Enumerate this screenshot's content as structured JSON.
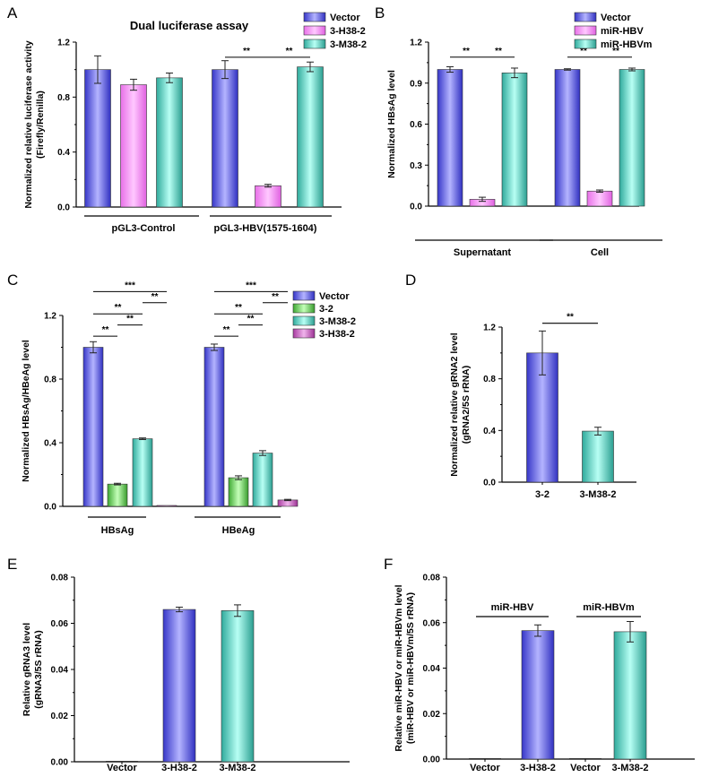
{
  "colors": {
    "blue": "#4b4bd8",
    "pink": "#f07ef0",
    "teal": "#48c6b8",
    "green": "#5cc24c",
    "purple": "#c046b8"
  },
  "chart_data": [
    {
      "panel": "A",
      "type": "bar",
      "title": "Dual luciferase assay",
      "ylabel": [
        "Normalized relative luciferase activity",
        "(Firefly/Renilla)"
      ],
      "ylim": [
        0,
        1.2
      ],
      "yticks": [
        "0.0",
        "0.4",
        "0.8",
        "1.2"
      ],
      "categories": [
        "pGL3-Control",
        "pGL3-HBV(1575-1604)"
      ],
      "series": [
        {
          "name": "Vector",
          "color": "blue",
          "values": [
            1.0,
            1.0
          ],
          "errors": [
            0.1,
            0.065
          ]
        },
        {
          "name": "3-H38-2",
          "color": "pink",
          "values": [
            0.89,
            0.155
          ],
          "errors": [
            0.04,
            0.01
          ]
        },
        {
          "name": "3-M38-2",
          "color": "teal",
          "values": [
            0.94,
            1.02
          ],
          "errors": [
            0.035,
            0.035
          ]
        }
      ],
      "significance": [
        {
          "label": "**",
          "group": 1,
          "from": 0,
          "to": 1,
          "y": 1.09
        },
        {
          "label": "**",
          "group": 1,
          "from": 1,
          "to": 2,
          "y": 1.09
        }
      ],
      "legend": "top-right"
    },
    {
      "panel": "B",
      "type": "bar",
      "title": "",
      "ylabel": [
        "Normalized HBsAg level"
      ],
      "ylim": [
        0,
        1.2
      ],
      "yticks": [
        "0.0",
        "0.3",
        "0.6",
        "0.9",
        "1.2"
      ],
      "categories": [
        "Supernatant",
        "Cell"
      ],
      "series": [
        {
          "name": "Vector",
          "color": "blue",
          "values": [
            1.0,
            1.0
          ],
          "errors": [
            0.02,
            0.005
          ]
        },
        {
          "name": "miR-HBV",
          "color": "pink",
          "values": [
            0.05,
            0.11
          ],
          "errors": [
            0.015,
            0.008
          ]
        },
        {
          "name": "miR-HBVm",
          "color": "teal",
          "values": [
            0.975,
            1.0
          ],
          "errors": [
            0.035,
            0.01
          ]
        }
      ],
      "significance": [
        {
          "label": "**",
          "group": 0,
          "from": 0,
          "to": 1,
          "y": 1.09
        },
        {
          "label": "**",
          "group": 0,
          "from": 1,
          "to": 2,
          "y": 1.09
        },
        {
          "label": "**",
          "group": 1,
          "from": 0,
          "to": 1,
          "y": 1.09
        },
        {
          "label": "**",
          "group": 1,
          "from": 1,
          "to": 2,
          "y": 1.09
        }
      ],
      "legend": "top-right"
    },
    {
      "panel": "C",
      "type": "bar",
      "title": "",
      "ylabel": [
        "Normalized HBsAg/HBeAg level"
      ],
      "ylim": [
        0,
        1.2
      ],
      "yticks": [
        "0.0",
        "0.4",
        "0.8",
        "1.2"
      ],
      "categories": [
        "HBsAg",
        "HBeAg"
      ],
      "series": [
        {
          "name": "Vector",
          "color": "blue",
          "values": [
            1.0,
            1.0
          ],
          "errors": [
            0.035,
            0.02
          ]
        },
        {
          "name": "3-2",
          "color": "green",
          "values": [
            0.14,
            0.18
          ],
          "errors": [
            0.005,
            0.012
          ]
        },
        {
          "name": "3-M38-2",
          "color": "teal",
          "values": [
            0.425,
            0.335
          ],
          "errors": [
            0.005,
            0.015
          ]
        },
        {
          "name": "3-H38-2",
          "color": "purple",
          "values": [
            0.005,
            0.04
          ],
          "errors": [
            0.0,
            0.004
          ]
        }
      ],
      "significance": [
        {
          "label": "**",
          "group": 0,
          "from": 0,
          "to": 1,
          "y": 1.07
        },
        {
          "label": "**",
          "group": 0,
          "from": 1,
          "to": 2,
          "y": 1.14
        },
        {
          "label": "**",
          "group": 0,
          "from": 0,
          "to": 2,
          "y": 1.21
        },
        {
          "label": "**",
          "group": 0,
          "from": 2,
          "to": 3,
          "y": 1.28
        },
        {
          "label": "***",
          "group": 0,
          "from": 0,
          "to": 3,
          "y": 1.35
        },
        {
          "label": "**",
          "group": 1,
          "from": 0,
          "to": 1,
          "y": 1.07
        },
        {
          "label": "**",
          "group": 1,
          "from": 1,
          "to": 2,
          "y": 1.14
        },
        {
          "label": "**",
          "group": 1,
          "from": 0,
          "to": 2,
          "y": 1.21
        },
        {
          "label": "**",
          "group": 1,
          "from": 2,
          "to": 3,
          "y": 1.28
        },
        {
          "label": "***",
          "group": 1,
          "from": 0,
          "to": 3,
          "y": 1.35
        }
      ],
      "legend": "top-right"
    },
    {
      "panel": "D",
      "type": "bar",
      "title": "",
      "ylabel": [
        "Normalized relative gRNA2 level",
        "(gRNA2/5S rRNA)"
      ],
      "ylim": [
        0,
        1.2
      ],
      "yticks": [
        "0.0",
        "0.4",
        "0.8",
        "1.2"
      ],
      "categories": [
        "3-2",
        "3-M38-2"
      ],
      "values": [
        1.0,
        0.395
      ],
      "errors": [
        0.17,
        0.03
      ],
      "colors": [
        "blue",
        "teal"
      ],
      "significance": [
        {
          "label": "**",
          "from": 0,
          "to": 1,
          "y": 1.23
        }
      ]
    },
    {
      "panel": "E",
      "type": "bar",
      "title": "",
      "ylabel": [
        "Relative gRNA3 level",
        "(gRNA3/5S rRNA)"
      ],
      "ylim": [
        0,
        0.08
      ],
      "yticks": [
        "0.00",
        "0.02",
        "0.04",
        "0.06",
        "0.08"
      ],
      "categories": [
        "Vector",
        "3-H38-2",
        "3-M38-2"
      ],
      "values": [
        0.0,
        0.066,
        0.0655
      ],
      "errors": [
        0.0,
        0.001,
        0.0025
      ],
      "colors": [
        "blue",
        "blue",
        "teal"
      ]
    },
    {
      "panel": "F",
      "type": "bar",
      "title": "",
      "ylabel": [
        "Relative miR-HBV or miR-HBVm  level",
        "(miR-HBV or miR-HBVm/5S rRNA)"
      ],
      "ylim": [
        0,
        0.08
      ],
      "yticks": [
        "0.00",
        "0.02",
        "0.04",
        "0.06",
        "0.08"
      ],
      "categories": [
        "Vector",
        "3-H38-2",
        "Vector",
        "3-M38-2"
      ],
      "values": [
        0.0,
        0.0565,
        0.0,
        0.056
      ],
      "errors": [
        0.0,
        0.0025,
        0.0,
        0.0045
      ],
      "colors": [
        "blue",
        "blue",
        "teal",
        "teal"
      ],
      "group_labels": [
        {
          "label": "miR-HBV",
          "from": 0,
          "to": 1
        },
        {
          "label": "miR-HBVm",
          "from": 2,
          "to": 3
        }
      ]
    }
  ]
}
